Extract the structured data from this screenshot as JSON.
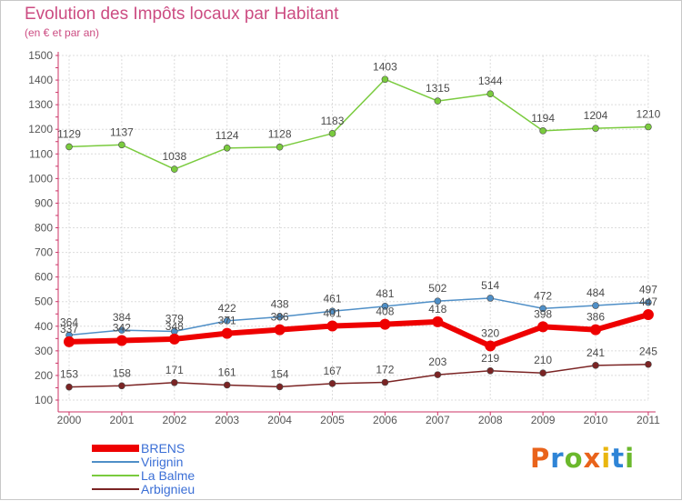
{
  "title": "Evolution des Impôts locaux par Habitant",
  "subtitle": "(en € et par an)",
  "logo": {
    "letters": [
      "P",
      "r",
      "o",
      "x",
      "i",
      "t",
      "i"
    ],
    "colors": [
      "#e9631b",
      "#2e84d6",
      "#6bb82c",
      "#e9631b",
      "#e9b60f",
      "#2e84d6",
      "#6bb82c"
    ]
  },
  "chart_data": {
    "type": "line",
    "title": "Evolution des Impôts locaux par Habitant",
    "subtitle": "(en € et par an)",
    "xlabel": "",
    "ylabel": "",
    "ylim": [
      100,
      1500
    ],
    "yticks": [
      100,
      200,
      300,
      400,
      500,
      600,
      700,
      800,
      900,
      1000,
      1100,
      1200,
      1300,
      1400,
      1500
    ],
    "categories": [
      "2000",
      "2001",
      "2002",
      "2003",
      "2004",
      "2005",
      "2006",
      "2007",
      "2008",
      "2009",
      "2010",
      "2011"
    ],
    "grid": true,
    "legend_position": "bottom-left",
    "series": [
      {
        "name": "BRENS",
        "color": "#ee0000",
        "values": [
          337,
          342,
          348,
          371,
          386,
          401,
          408,
          418,
          320,
          398,
          386,
          447
        ]
      },
      {
        "name": "Virignin",
        "color": "#4f8fc7",
        "values": [
          364,
          384,
          379,
          422,
          438,
          461,
          481,
          502,
          514,
          472,
          484,
          497
        ]
      },
      {
        "name": "La Balme",
        "color": "#7acb3e",
        "values": [
          1129,
          1137,
          1038,
          1124,
          1128,
          1183,
          1403,
          1315,
          1344,
          1194,
          1204,
          1210
        ]
      },
      {
        "name": "Arbignieu",
        "color": "#7b2424",
        "values": [
          153,
          158,
          171,
          161,
          154,
          167,
          172,
          203,
          219,
          210,
          241,
          245
        ]
      }
    ]
  }
}
